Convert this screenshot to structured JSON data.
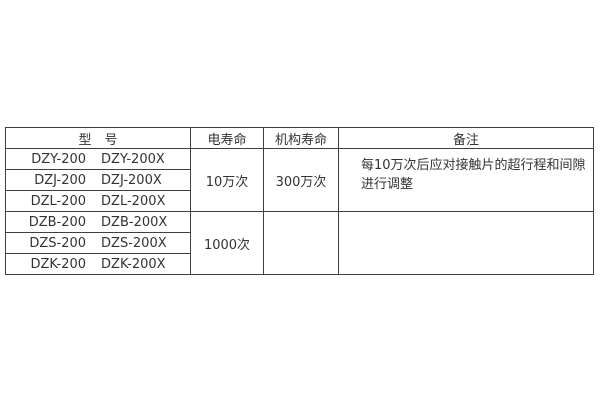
{
  "page": {
    "background_color": "#ffffff",
    "text_color": "#333333",
    "border_color": "#3f3f3f"
  },
  "table": {
    "headers": {
      "model": "型　号",
      "electrical_life": "电寿命",
      "mechanism_life": "机构寿命",
      "remarks": "备注"
    },
    "model_rows": [
      {
        "left": "DZY-200",
        "right": "DZY-200X"
      },
      {
        "left": "DZJ-200",
        "right": "DZJ-200X"
      },
      {
        "left": "DZL-200",
        "right": "DZL-200X"
      },
      {
        "left": "DZB-200",
        "right": "DZB-200X"
      },
      {
        "left": "DZS-200",
        "right": "DZS-200X"
      },
      {
        "left": "DZK-200",
        "right": "DZK-200X"
      }
    ],
    "groups": [
      {
        "electrical_life": "10万次",
        "mechanism_life": "300万次",
        "remark_line1": "每10万次后应对接触片的超行程和间隙",
        "remark_line2": "进行调整"
      },
      {
        "electrical_life": "1000次",
        "mechanism_life": "",
        "remark_line1": "",
        "remark_line2": ""
      }
    ]
  }
}
